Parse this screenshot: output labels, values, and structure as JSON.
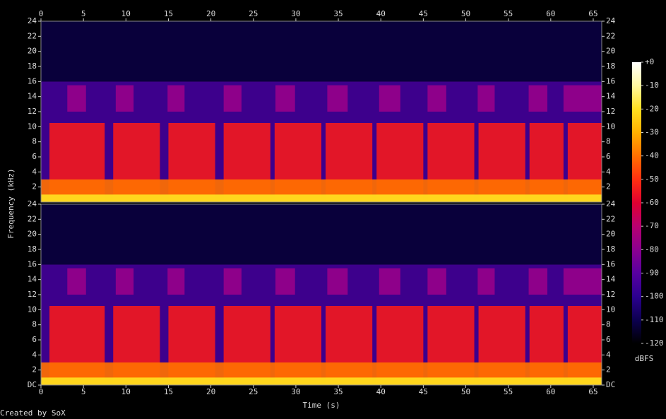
{
  "chart_data": {
    "type": "spectrogram",
    "xlabel": "Time (s)",
    "ylabel": "Frequency (kHz)",
    "zlabel": "dBFS",
    "footer": "Created by SoX",
    "xlim": [
      0,
      66
    ],
    "xticks": [
      0,
      5,
      10,
      15,
      20,
      25,
      30,
      35,
      40,
      45,
      50,
      55,
      60,
      65
    ],
    "channels": [
      {
        "ylim": [
          0,
          24
        ],
        "yticks": [
          2,
          4,
          6,
          8,
          10,
          12,
          14,
          16,
          18,
          20,
          22,
          24
        ]
      },
      {
        "ylim": [
          0,
          24
        ],
        "yticks": [
          {
            "value": 0,
            "label": "DC"
          },
          2,
          4,
          6,
          8,
          10,
          12,
          14,
          16,
          18,
          20,
          22,
          24
        ]
      }
    ],
    "zlim": [
      -120,
      0
    ],
    "zticks": [
      {
        "value": 0,
        "label": "+0"
      },
      -10,
      -20,
      -30,
      -40,
      -50,
      -60,
      -70,
      -80,
      -90,
      -100,
      -110,
      -120
    ],
    "colormap": [
      "#ffffff",
      "#fff8a0",
      "#ffe020",
      "#ffb000",
      "#ff7000",
      "#ff3010",
      "#e00030",
      "#b80070",
      "#8c0090",
      "#5800a0",
      "#2c0090",
      "#0c0050",
      "#000000"
    ],
    "bands": [
      {
        "ylim": [
          0,
          16
        ],
        "level": -95,
        "segments": [
          [
            0,
            66
          ]
        ]
      },
      {
        "ylim": [
          16,
          24
        ],
        "level": -112,
        "segments": [
          [
            0,
            66
          ]
        ]
      },
      {
        "ylim": [
          12,
          15.5
        ],
        "level": -78,
        "segments": [
          [
            3.1,
            5.3
          ],
          [
            8.8,
            10.9
          ],
          [
            14.9,
            16.9
          ],
          [
            21.5,
            23.6
          ],
          [
            27.6,
            29.9
          ],
          [
            33.7,
            36.1
          ],
          [
            39.8,
            42.3
          ],
          [
            45.5,
            47.7
          ],
          [
            51.4,
            53.4
          ],
          [
            57.4,
            59.6
          ],
          [
            61.5,
            66
          ]
        ]
      },
      {
        "ylim": [
          0,
          10.5
        ],
        "level": -55,
        "segments": [
          [
            1,
            7.5
          ],
          [
            8.5,
            14
          ],
          [
            15,
            20.5
          ],
          [
            21.5,
            27
          ],
          [
            27.5,
            33
          ],
          [
            33.5,
            39
          ],
          [
            39.5,
            45
          ],
          [
            45.5,
            51
          ],
          [
            51.5,
            57
          ],
          [
            57.5,
            61.5
          ],
          [
            62,
            66
          ]
        ]
      },
      {
        "ylim": [
          0,
          3
        ],
        "level": -40,
        "segments": [
          [
            0,
            66
          ]
        ]
      },
      {
        "ylim": [
          0,
          1
        ],
        "level": -20,
        "segments": [
          [
            0,
            66
          ]
        ]
      }
    ]
  }
}
